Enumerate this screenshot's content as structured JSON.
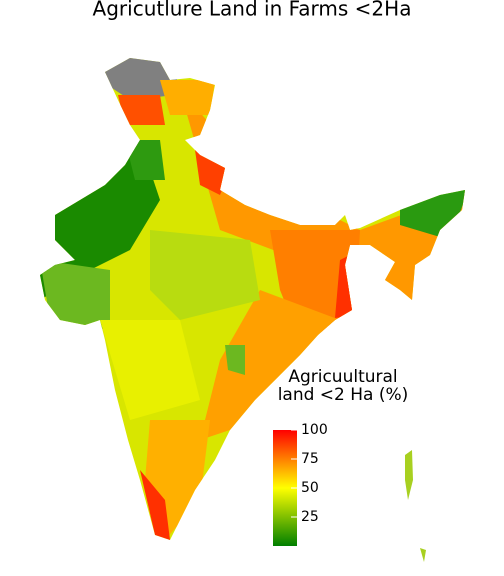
{
  "title": "Agricutlure Land in Farms <2Ha",
  "legend": {
    "title_lines": [
      "Agricuultural",
      "land <2 Ha (%)"
    ],
    "lim": [
      0,
      100
    ],
    "ticks": [
      25,
      50,
      75,
      100
    ],
    "colors": [
      "#007f00",
      "#ffff00",
      "#ff0000"
    ]
  }
}
